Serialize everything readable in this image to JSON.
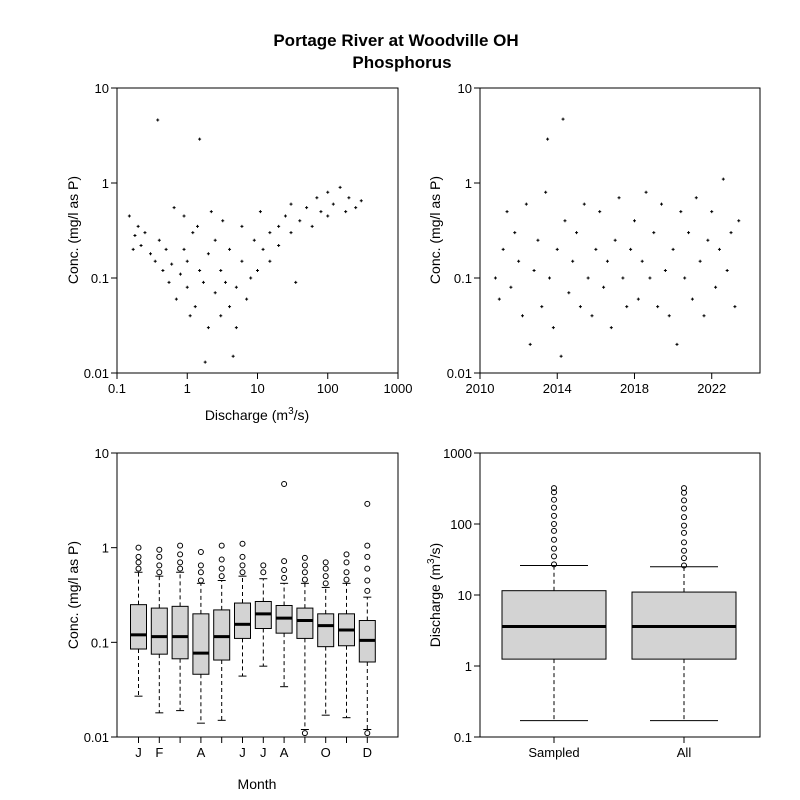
{
  "figure": {
    "title": "Portage River at Woodville OH",
    "subtitle": "Phosphorus"
  },
  "chart_data": [
    {
      "type": "scatter",
      "title": "",
      "xlabel": "Discharge (m3/s)",
      "ylabel": "Conc. (mg/l as P)",
      "x_scale": "log",
      "y_scale": "log",
      "xlim": [
        0.1,
        1000
      ],
      "ylim": [
        0.01,
        10
      ],
      "x_ticks": [
        "0.1",
        "1",
        "10",
        "100",
        "1000"
      ],
      "y_ticks": [
        "0.01",
        "0.1",
        "1",
        "10"
      ],
      "points": [
        [
          0.38,
          4.6
        ],
        [
          1.5,
          2.9
        ],
        [
          0.18,
          0.28
        ],
        [
          0.2,
          0.35
        ],
        [
          0.22,
          0.22
        ],
        [
          0.25,
          0.3
        ],
        [
          0.3,
          0.18
        ],
        [
          0.35,
          0.15
        ],
        [
          0.4,
          0.25
        ],
        [
          0.45,
          0.12
        ],
        [
          0.5,
          0.2
        ],
        [
          0.55,
          0.09
        ],
        [
          0.6,
          0.14
        ],
        [
          0.7,
          0.06
        ],
        [
          0.8,
          0.11
        ],
        [
          0.9,
          0.2
        ],
        [
          1.0,
          0.08
        ],
        [
          1.0,
          0.15
        ],
        [
          1.1,
          0.04
        ],
        [
          1.2,
          0.3
        ],
        [
          1.3,
          0.05
        ],
        [
          1.5,
          0.12
        ],
        [
          1.7,
          0.09
        ],
        [
          2.0,
          0.18
        ],
        [
          2.0,
          0.03
        ],
        [
          2.5,
          0.07
        ],
        [
          2.5,
          0.25
        ],
        [
          3.0,
          0.12
        ],
        [
          3.0,
          0.04
        ],
        [
          3.5,
          0.09
        ],
        [
          4.0,
          0.05
        ],
        [
          4.0,
          0.2
        ],
        [
          5.0,
          0.08
        ],
        [
          5.0,
          0.03
        ],
        [
          6.0,
          0.15
        ],
        [
          7.0,
          0.06
        ],
        [
          8.0,
          0.1
        ],
        [
          9.0,
          0.25
        ],
        [
          10,
          0.12
        ],
        [
          12,
          0.2
        ],
        [
          15,
          0.3
        ],
        [
          15,
          0.15
        ],
        [
          20,
          0.35
        ],
        [
          20,
          0.22
        ],
        [
          25,
          0.45
        ],
        [
          30,
          0.3
        ],
        [
          30,
          0.6
        ],
        [
          40,
          0.4
        ],
        [
          50,
          0.55
        ],
        [
          60,
          0.35
        ],
        [
          70,
          0.7
        ],
        [
          80,
          0.5
        ],
        [
          100,
          0.8
        ],
        [
          100,
          0.45
        ],
        [
          120,
          0.6
        ],
        [
          150,
          0.9
        ],
        [
          180,
          0.5
        ],
        [
          200,
          0.7
        ],
        [
          250,
          0.55
        ],
        [
          300,
          0.65
        ],
        [
          0.15,
          0.45
        ],
        [
          0.17,
          0.2
        ],
        [
          1.8,
          0.013
        ],
        [
          4.5,
          0.015
        ],
        [
          35,
          0.09
        ],
        [
          0.65,
          0.55
        ],
        [
          0.9,
          0.45
        ],
        [
          1.4,
          0.35
        ],
        [
          2.2,
          0.5
        ],
        [
          3.2,
          0.4
        ],
        [
          6.0,
          0.35
        ],
        [
          11,
          0.5
        ]
      ]
    },
    {
      "type": "scatter",
      "title": "",
      "xlabel": "",
      "ylabel": "Conc. (mg/l as P)",
      "x_scale": "linear",
      "y_scale": "log",
      "xlim": [
        2010,
        2024.5
      ],
      "ylim": [
        0.01,
        10
      ],
      "x_ticks": [
        "2010",
        "2014",
        "2018",
        "2022"
      ],
      "y_ticks": [
        "0.01",
        "0.1",
        "1",
        "10"
      ],
      "points": [
        [
          2013.5,
          2.9
        ],
        [
          2014.3,
          4.7
        ],
        [
          2010.8,
          0.1
        ],
        [
          2011.0,
          0.06
        ],
        [
          2011.2,
          0.2
        ],
        [
          2011.4,
          0.5
        ],
        [
          2011.6,
          0.08
        ],
        [
          2011.8,
          0.3
        ],
        [
          2012.0,
          0.15
        ],
        [
          2012.2,
          0.04
        ],
        [
          2012.4,
          0.6
        ],
        [
          2012.6,
          0.02
        ],
        [
          2012.8,
          0.12
        ],
        [
          2013.0,
          0.25
        ],
        [
          2013.2,
          0.05
        ],
        [
          2013.4,
          0.8
        ],
        [
          2013.6,
          0.1
        ],
        [
          2013.8,
          0.03
        ],
        [
          2014.0,
          0.2
        ],
        [
          2014.2,
          0.015
        ],
        [
          2014.4,
          0.4
        ],
        [
          2014.6,
          0.07
        ],
        [
          2014.8,
          0.15
        ],
        [
          2015.0,
          0.3
        ],
        [
          2015.2,
          0.05
        ],
        [
          2015.4,
          0.6
        ],
        [
          2015.6,
          0.1
        ],
        [
          2015.8,
          0.04
        ],
        [
          2016.0,
          0.2
        ],
        [
          2016.2,
          0.5
        ],
        [
          2016.4,
          0.08
        ],
        [
          2016.6,
          0.15
        ],
        [
          2016.8,
          0.03
        ],
        [
          2017.0,
          0.25
        ],
        [
          2017.2,
          0.7
        ],
        [
          2017.4,
          0.1
        ],
        [
          2017.6,
          0.05
        ],
        [
          2017.8,
          0.2
        ],
        [
          2018.0,
          0.4
        ],
        [
          2018.2,
          0.06
        ],
        [
          2018.4,
          0.15
        ],
        [
          2018.6,
          0.8
        ],
        [
          2018.8,
          0.1
        ],
        [
          2019.0,
          0.3
        ],
        [
          2019.2,
          0.05
        ],
        [
          2019.4,
          0.6
        ],
        [
          2019.6,
          0.12
        ],
        [
          2019.8,
          0.04
        ],
        [
          2020.0,
          0.2
        ],
        [
          2020.2,
          0.02
        ],
        [
          2020.4,
          0.5
        ],
        [
          2020.6,
          0.1
        ],
        [
          2020.8,
          0.3
        ],
        [
          2021.0,
          0.06
        ],
        [
          2021.2,
          0.7
        ],
        [
          2021.4,
          0.15
        ],
        [
          2021.6,
          0.04
        ],
        [
          2021.8,
          0.25
        ],
        [
          2022.0,
          0.5
        ],
        [
          2022.2,
          0.08
        ],
        [
          2022.4,
          0.2
        ],
        [
          2022.6,
          1.1
        ],
        [
          2022.8,
          0.12
        ],
        [
          2023.0,
          0.3
        ],
        [
          2023.2,
          0.05
        ],
        [
          2023.4,
          0.4
        ]
      ]
    },
    {
      "type": "box",
      "title": "",
      "xlabel": "Month",
      "ylabel": "Conc. (mg/l as P)",
      "y_scale": "log",
      "ylim": [
        0.01,
        10
      ],
      "y_ticks": [
        "0.01",
        "0.1",
        "1",
        "10"
      ],
      "x_tick_labels": [
        "J",
        "F",
        "",
        "A",
        "",
        "J",
        "J",
        "A",
        "",
        "O",
        "",
        "D"
      ],
      "boxes": [
        {
          "month": 1,
          "whisker_low": 0.027,
          "q1": 0.085,
          "median": 0.12,
          "q3": 0.25,
          "whisker_high": 0.55,
          "outliers": [
            0.6,
            0.7,
            0.8,
            1.0
          ]
        },
        {
          "month": 2,
          "whisker_low": 0.018,
          "q1": 0.075,
          "median": 0.115,
          "q3": 0.23,
          "whisker_high": 0.5,
          "outliers": [
            0.55,
            0.65,
            0.8,
            0.95
          ]
        },
        {
          "month": 3,
          "whisker_low": 0.019,
          "q1": 0.067,
          "median": 0.115,
          "q3": 0.24,
          "whisker_high": 0.55,
          "outliers": [
            0.6,
            0.7,
            0.85,
            1.05
          ]
        },
        {
          "month": 4,
          "whisker_low": 0.014,
          "q1": 0.046,
          "median": 0.077,
          "q3": 0.2,
          "whisker_high": 0.42,
          "outliers": [
            0.45,
            0.55,
            0.65,
            0.9
          ]
        },
        {
          "month": 5,
          "whisker_low": 0.015,
          "q1": 0.065,
          "median": 0.115,
          "q3": 0.22,
          "whisker_high": 0.45,
          "outliers": [
            0.5,
            0.6,
            0.75,
            1.05
          ]
        },
        {
          "month": 6,
          "whisker_low": 0.044,
          "q1": 0.11,
          "median": 0.155,
          "q3": 0.26,
          "whisker_high": 0.5,
          "outliers": [
            0.55,
            0.65,
            0.8,
            1.1
          ]
        },
        {
          "month": 7,
          "whisker_low": 0.056,
          "q1": 0.14,
          "median": 0.2,
          "q3": 0.27,
          "whisker_high": 0.47,
          "outliers": [
            0.55,
            0.65
          ]
        },
        {
          "month": 8,
          "whisker_low": 0.034,
          "q1": 0.125,
          "median": 0.18,
          "q3": 0.245,
          "whisker_high": 0.42,
          "outliers": [
            0.48,
            0.58,
            0.72,
            4.7
          ]
        },
        {
          "month": 9,
          "whisker_low": 0.012,
          "q1": 0.11,
          "median": 0.17,
          "q3": 0.23,
          "whisker_high": 0.42,
          "outliers": [
            0.011,
            0.46,
            0.55,
            0.65,
            0.78
          ]
        },
        {
          "month": 10,
          "whisker_low": 0.017,
          "q1": 0.09,
          "median": 0.15,
          "q3": 0.2,
          "whisker_high": 0.38,
          "outliers": [
            0.42,
            0.5,
            0.6,
            0.7
          ]
        },
        {
          "month": 11,
          "whisker_low": 0.016,
          "q1": 0.092,
          "median": 0.135,
          "q3": 0.2,
          "whisker_high": 0.42,
          "outliers": [
            0.46,
            0.55,
            0.7,
            0.85
          ]
        },
        {
          "month": 12,
          "whisker_low": 0.012,
          "q1": 0.062,
          "median": 0.105,
          "q3": 0.17,
          "whisker_high": 0.3,
          "outliers": [
            0.011,
            0.35,
            0.45,
            0.6,
            0.8,
            1.05,
            2.9
          ]
        }
      ]
    },
    {
      "type": "box",
      "title": "",
      "xlabel": "",
      "ylabel": "Discharge (m3/s)",
      "y_scale": "log",
      "ylim": [
        0.1,
        1000
      ],
      "y_ticks": [
        "0.1",
        "1",
        "10",
        "100",
        "1000"
      ],
      "boxes": [
        {
          "name": "Sampled",
          "whisker_low": 0.17,
          "q1": 1.25,
          "median": 3.6,
          "q3": 11.5,
          "whisker_high": 26,
          "outliers": [
            27,
            35,
            45,
            60,
            80,
            100,
            130,
            170,
            220,
            280,
            320
          ]
        },
        {
          "name": "All",
          "whisker_low": 0.17,
          "q1": 1.25,
          "median": 3.6,
          "q3": 11.0,
          "whisker_high": 25,
          "outliers": [
            26,
            33,
            42,
            55,
            75,
            95,
            125,
            165,
            215,
            275,
            320
          ]
        }
      ]
    }
  ]
}
